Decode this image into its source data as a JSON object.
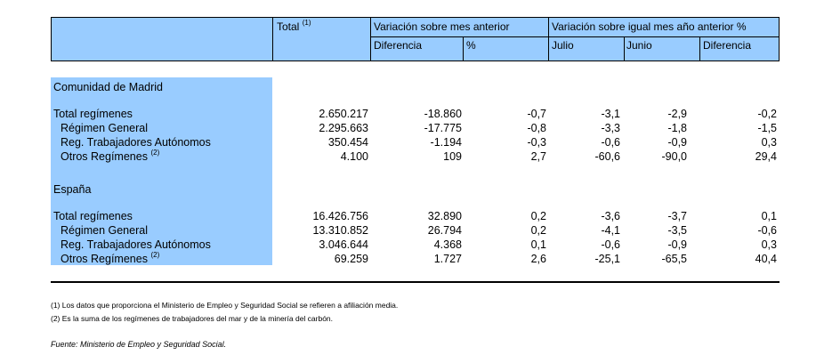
{
  "header": {
    "total_label": "Total",
    "total_sup": "(1)",
    "group1_label": "Variación sobre mes anterior",
    "group2_label": "Variación sobre igual mes año anterior %",
    "sub_diferencia": "Diferencia",
    "sub_pct": "%",
    "sub_julio": "Julio",
    "sub_junio": "Junio",
    "sub_diferencia2": "Diferencia"
  },
  "sections": [
    {
      "title": "Comunidad de Madrid",
      "rows": [
        {
          "label": "Total regímenes",
          "sup": "",
          "total": "2.650.217",
          "diferencia": "-18.860",
          "pct": "-0,7",
          "julio": "-3,1",
          "junio": "-2,9",
          "diferencia2": "-0,2"
        },
        {
          "label": "Régimen General",
          "sup": "",
          "total": "2.295.663",
          "diferencia": "-17.775",
          "pct": "-0,8",
          "julio": "-3,3",
          "junio": "-1,8",
          "diferencia2": "-1,5"
        },
        {
          "label": "Reg. Trabajadores Autónomos",
          "sup": "",
          "total": "350.454",
          "diferencia": "-1.194",
          "pct": "-0,3",
          "julio": "-0,6",
          "junio": "-0,9",
          "diferencia2": "0,3"
        },
        {
          "label": "Otros Regímenes",
          "sup": "(2)",
          "total": "4.100",
          "diferencia": "109",
          "pct": "2,7",
          "julio": "-60,6",
          "junio": "-90,0",
          "diferencia2": "29,4"
        }
      ]
    },
    {
      "title": "España",
      "rows": [
        {
          "label": "Total regímenes",
          "sup": "",
          "total": "16.426.756",
          "diferencia": "32.890",
          "pct": "0,2",
          "julio": "-3,6",
          "junio": "-3,7",
          "diferencia2": "0,1"
        },
        {
          "label": "Régimen General",
          "sup": "",
          "total": "13.310.852",
          "diferencia": "26.794",
          "pct": "0,2",
          "julio": "-4,1",
          "junio": "-3,5",
          "diferencia2": "-0,6"
        },
        {
          "label": "Reg. Trabajadores Autónomos",
          "sup": "",
          "total": "3.046.644",
          "diferencia": "4.368",
          "pct": "0,1",
          "julio": "-0,6",
          "junio": "-0,9",
          "diferencia2": "0,3"
        },
        {
          "label": "Otros Regímenes",
          "sup": "(2)",
          "total": "69.259",
          "diferencia": "1.727",
          "pct": "2,6",
          "julio": "-25,1",
          "junio": "-65,5",
          "diferencia2": "40,4"
        }
      ]
    }
  ],
  "notes": [
    "(1) Los datos que proporciona el Ministerio de Empleo y Seguridad Social se refieren a afiliación media.",
    "(2) Es la suma de los regímenes de trabajadores del mar y de la minería del carbón."
  ],
  "source": "Fuente: Ministerio de Empleo y Seguridad Social.",
  "colors": {
    "highlight": "#99ccff"
  }
}
